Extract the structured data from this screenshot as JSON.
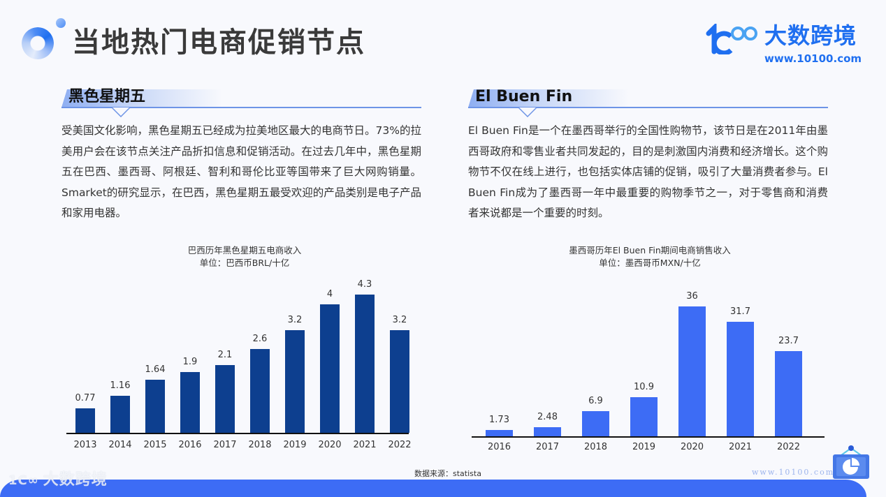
{
  "header": {
    "title": "当地热门电商促销节点",
    "brand": {
      "name": "大数跨境",
      "url": "www.10100.com",
      "icon": "10100-logo-icon"
    }
  },
  "sections": [
    {
      "title": "黑色星期五",
      "body": "受美国文化影响，黑色星期五已经成为拉美地区最大的电商节日。73%的拉美用户会在该节点关注产品折扣信息和促销活动。在过去几年中，黑色星期五在巴西、墨西哥、阿根廷、智利和哥伦比亚等国带来了巨大网购销量。Smarket的研究显示，在巴西，黑色星期五最受欢迎的产品类别是电子产品和家用电器。"
    },
    {
      "title": "El Buen Fin",
      "body": "El Buen Fin是一个在墨西哥举行的全国性购物节，该节日是在2011年由墨西哥政府和零售业者共同发起的，目的是刺激国内消费和经济增长。这个购物节不仅在线上进行，也包括实体店铺的促销，吸引了大量消费者参与。El Buen Fin成为了墨西哥一年中最重要的购物季节之一，对于零售商和消费者来说都是一个重要的时刻。"
    }
  ],
  "chart_data": [
    {
      "type": "bar",
      "title": "巴西历年黑色星期五电商收入",
      "subtitle": "单位：巴西币BRL/十亿",
      "xlabel": "",
      "ylabel": "",
      "categories": [
        "2013",
        "2014",
        "2015",
        "2016",
        "2017",
        "2018",
        "2019",
        "2020",
        "2021",
        "2022"
      ],
      "values": [
        0.77,
        1.16,
        1.64,
        1.9,
        2.1,
        2.6,
        3.2,
        4,
        4.3,
        3.2
      ],
      "value_labels": [
        "0.77",
        "1.16",
        "1.64",
        "1.9",
        "2.1",
        "2.6",
        "3.2",
        "4",
        "4.3",
        "3.2"
      ],
      "ylim": [
        0,
        4.3
      ],
      "grid": false,
      "bar_color": "#0d3f8f",
      "data_labels": true
    },
    {
      "type": "bar",
      "title": "墨西哥历年El Buen Fin期间电商销售收入",
      "subtitle": "单位：墨西哥币MXN/十亿",
      "xlabel": "",
      "ylabel": "",
      "categories": [
        "2016",
        "2017",
        "2018",
        "2019",
        "2020",
        "2021",
        "2022"
      ],
      "values": [
        1.73,
        2.48,
        6.9,
        10.9,
        36,
        31.7,
        23.7
      ],
      "value_labels": [
        "1.73",
        "2.48",
        "6.9",
        "10.9",
        "36",
        "31.7",
        "23.7"
      ],
      "ylim": [
        0,
        36
      ],
      "grid": false,
      "bar_color": "#3d6cf5",
      "data_labels": true
    }
  ],
  "footer": {
    "source": "数据来源：statista",
    "brand_name": "大数跨境",
    "brand_mark": "1C∞",
    "url": "www.10100.com",
    "icon": "presentation-chart-icon"
  },
  "colors": {
    "accent": "#1f6ff0",
    "footer_band": "#3d6cf5",
    "brazil_bar": "#0d3f8f",
    "mexico_bar": "#3d6cf5",
    "section_line": "#6e94e6"
  }
}
